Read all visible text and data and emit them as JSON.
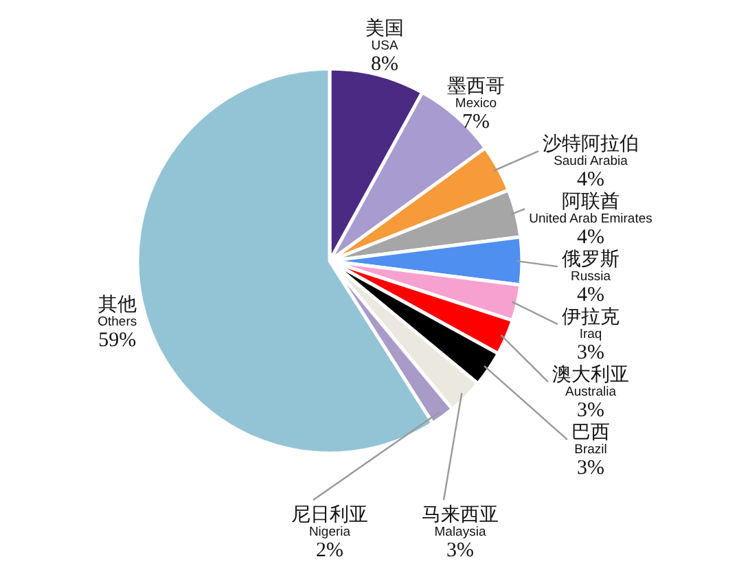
{
  "chart_data": {
    "type": "pie",
    "categories": [
      "美国\nUSA",
      "墨西哥\nMexico",
      "沙特阿拉伯\nSaudi Arabia",
      "阿联酋\nUnited Arab Emirates",
      "俄罗斯\nRussia",
      "伊拉克\nIraq",
      "澳大利亚\nAustralia",
      "巴西\nBrazil",
      "马来西亚\nMalaysia",
      "尼日利亚\nNigeria",
      "其他\nOthers"
    ],
    "values": [
      8,
      7,
      4,
      4,
      4,
      3,
      3,
      3,
      3,
      2,
      59
    ],
    "value_labels": [
      "8%",
      "7%",
      "4%",
      "4%",
      "4%",
      "3%",
      "3%",
      "3%",
      "3%",
      "2%",
      "59%"
    ],
    "colors": [
      "#4b2a84",
      "#a89bd0",
      "#f79a3a",
      "#a6a6a6",
      "#4f8ff0",
      "#f7a1d0",
      "#ff0000",
      "#000000",
      "#ebe8e0",
      "#a89bc8",
      "#93c4d6"
    ],
    "legend": false
  }
}
